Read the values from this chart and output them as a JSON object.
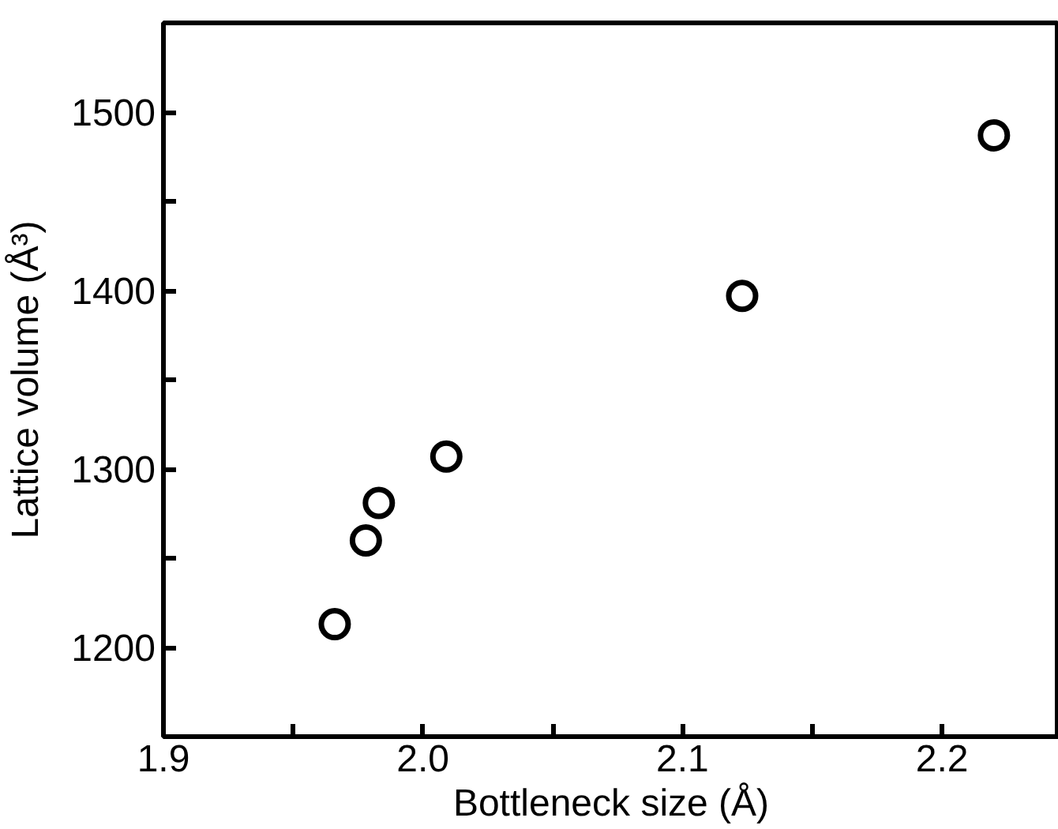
{
  "chart_data": {
    "type": "scatter",
    "xlabel": "Bottleneck size (Å)",
    "ylabel": "Lattice volume (Å³)",
    "x": [
      1.966,
      1.978,
      1.983,
      2.009,
      2.123,
      2.22
    ],
    "series": [
      {
        "color": "#000000",
        "values": [
          1213,
          1260,
          1281,
          1307,
          1397,
          1487
        ]
      }
    ],
    "marker": "circle",
    "grid": false,
    "xlim": [
      1.9,
      2.245
    ],
    "ylim": [
      1150,
      1550
    ],
    "xticks": [
      {
        "value": 1.9,
        "label": "1.9"
      },
      {
        "value": 1.95,
        "label": null
      },
      {
        "value": 2.0,
        "label": "2.0"
      },
      {
        "value": 2.05,
        "label": null
      },
      {
        "value": 2.1,
        "label": "2.1"
      },
      {
        "value": 2.15,
        "label": null
      },
      {
        "value": 2.2,
        "label": "2.2"
      }
    ],
    "yticks": [
      {
        "value": 1200,
        "label": "1200"
      },
      {
        "value": 1250,
        "label": null
      },
      {
        "value": 1300,
        "label": "1300"
      },
      {
        "value": 1350,
        "label": null
      },
      {
        "value": 1400,
        "label": "1400"
      },
      {
        "value": 1450,
        "label": null
      },
      {
        "value": 1500,
        "label": "1500"
      }
    ]
  }
}
